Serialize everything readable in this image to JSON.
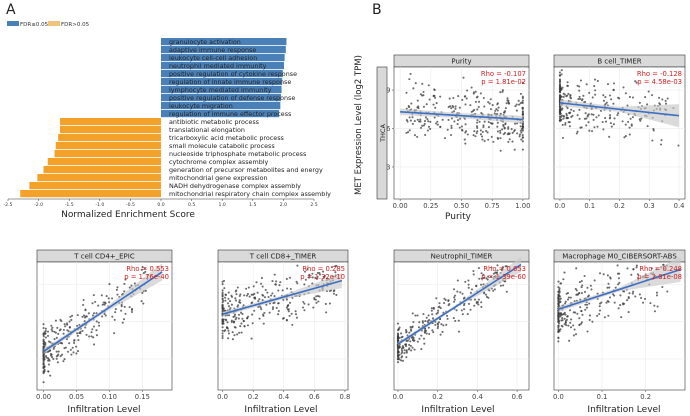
{
  "panel_a": {
    "letter": "A",
    "legend": [
      {
        "label": "FDR≤0.05",
        "color": "#4a80b8"
      },
      {
        "label": "FDR>0.05",
        "color": "#f0c27a"
      }
    ],
    "xlabel": "Normalized Enrichment Score"
  },
  "panel_b": {
    "letter": "B",
    "ylabel": "MET Expression Level (log2 TPM)",
    "row_label": "THCA",
    "purity_xlabel": "Purity",
    "infiltration_xlabel": "Infiltration Level"
  },
  "colors": {
    "positive_bar": "#4a80b8",
    "negative_bar": "#f3a128",
    "point": "#3c3c3c",
    "fit_line": "#3a6fc4",
    "ci_band": "#c8c8c8",
    "stat_text": "#d21f1f",
    "strip_bg": "#d9d9d9"
  },
  "chart_data": [
    {
      "type": "bar",
      "id": "gsea",
      "title": "",
      "xlabel": "Normalized Enrichment Score",
      "xlim": [
        -2.5,
        2.5
      ],
      "xticks": [
        -2.5,
        -2.0,
        -1.5,
        -1.0,
        -0.5,
        0.0,
        0.5,
        1.0,
        1.5,
        2.0,
        2.5
      ],
      "categories": [
        "granulocyte activation",
        "adaptive immune response",
        "leukocyte cell-cell adhesion",
        "neutrophil mediated immunity",
        "positive regulation of cytokine response",
        "regulation of innate immune response",
        "lymphocyte mediated immunity",
        "positive regulation of defense response",
        "leukocyte migration",
        "regulation of immune effector process",
        "antibiotic metabolic process",
        "translational elongation",
        "tricarboxylic acid metabolic process",
        "small molecule catabolic process",
        "nucleoside triphosphate metabolic process",
        "cytochrome complex assembly",
        "generation of precursor metabolites and energy",
        "mitochondrial gene expression",
        "NADH dehydrogenase complex assembly",
        "mitochondrial respiratory chain complex assembly"
      ],
      "values": [
        2.05,
        2.04,
        2.02,
        2.01,
        1.99,
        1.98,
        1.97,
        1.96,
        1.95,
        1.93,
        -1.65,
        -1.65,
        -1.68,
        -1.72,
        -1.74,
        -1.85,
        -1.92,
        -2.02,
        -2.15,
        -2.3
      ]
    },
    {
      "type": "scatter",
      "id": "purity",
      "title": "Purity",
      "xlabel": "Purity",
      "ylabel": "MET Expression Level (log2 TPM)",
      "xlim": [
        -0.05,
        1.05
      ],
      "ylim": [
        0.5,
        10.8
      ],
      "xticks": [
        0.0,
        0.25,
        0.5,
        0.75,
        1.0
      ],
      "xtick_labels": [
        "0.00",
        "0.25",
        "0.50",
        "0.75",
        "1.00"
      ],
      "yticks": [
        3,
        6,
        9
      ],
      "show_yticks": true,
      "rho_text": "Rho = -0.107",
      "p_text": "p = 1.81e-02",
      "fit": {
        "x": [
          0.0,
          1.0
        ],
        "y": [
          7.3,
          6.7
        ]
      },
      "ci_width": [
        0.25,
        0.3
      ],
      "x_dist": "purity",
      "y_center": 7.0,
      "y_spread": 1.7,
      "slope": -0.6,
      "seed": 11,
      "n": 330
    },
    {
      "type": "scatter",
      "id": "bcell",
      "title": "B cell_TIMER",
      "xlabel": "",
      "xlim": [
        -0.02,
        0.42
      ],
      "ylim": [
        0.5,
        10.8
      ],
      "xticks": [
        0.0,
        0.1,
        0.2,
        0.3,
        0.4
      ],
      "xtick_labels": [
        "0.0",
        "0.1",
        "0.2",
        "0.3",
        "0.4"
      ],
      "yticks": [
        3,
        6,
        9
      ],
      "show_yticks": false,
      "rho_text": "Rho = -0.128",
      "p_text": "p = 4.58e-03",
      "fit": {
        "x": [
          0.0,
          0.4
        ],
        "y": [
          8.0,
          7.0
        ]
      },
      "ci_width": [
        0.25,
        0.9
      ],
      "x_dist": "skew",
      "x_max": 0.4,
      "y_center": 7.6,
      "y_spread": 1.6,
      "slope": -2.5,
      "seed": 23,
      "n": 300
    },
    {
      "type": "scatter",
      "id": "cd4",
      "title": "T cell CD4+_EPIC",
      "xlabel": "Infiltration Level",
      "xlim": [
        -0.01,
        0.195
      ],
      "ylim": [
        0.5,
        10.8
      ],
      "xticks": [
        0.0,
        0.05,
        0.1,
        0.15
      ],
      "xtick_labels": [
        "0.00",
        "0.05",
        "0.10",
        "0.15"
      ],
      "yticks": [
        3,
        6,
        9
      ],
      "show_yticks": false,
      "rho_text": "Rho = 0.553",
      "p_text": "p = 1.76e-40",
      "fit": {
        "x": [
          0.0,
          0.18
        ],
        "y": [
          3.6,
          10.0
        ]
      },
      "ci_width": [
        0.2,
        0.7
      ],
      "x_dist": "skew",
      "x_max": 0.16,
      "y_center": 6.0,
      "y_spread": 1.4,
      "slope": 35.0,
      "seed": 37,
      "n": 300
    },
    {
      "type": "scatter",
      "id": "cd8",
      "title": "T cell CD8+_TIMER",
      "xlabel": "Infiltration Level",
      "xlim": [
        -0.03,
        0.82
      ],
      "ylim": [
        0.5,
        10.8
      ],
      "xticks": [
        0.0,
        0.2,
        0.4,
        0.6,
        0.8
      ],
      "xtick_labels": [
        "0.0",
        "0.2",
        "0.4",
        "0.6",
        "0.8"
      ],
      "yticks": [
        3,
        6,
        9
      ],
      "show_yticks": false,
      "rho_text": "Rho = 0.285",
      "p_text": "p = 1.32e-10",
      "fit": {
        "x": [
          0.0,
          0.78
        ],
        "y": [
          6.6,
          9.3
        ]
      },
      "ci_width": [
        0.2,
        0.6
      ],
      "x_dist": "uniform",
      "x_max": 0.75,
      "y_center": 7.4,
      "y_spread": 1.6,
      "slope": 3.4,
      "seed": 41,
      "n": 320
    },
    {
      "type": "scatter",
      "id": "neutrophil",
      "title": "Neutrophil_TIMER",
      "xlabel": "Infiltration Level",
      "xlim": [
        -0.02,
        0.66
      ],
      "ylim": [
        0.5,
        10.8
      ],
      "xticks": [
        0.0,
        0.2,
        0.4,
        0.6
      ],
      "xtick_labels": [
        "0.0",
        "0.2",
        "0.4",
        "0.6"
      ],
      "yticks": [
        3,
        6,
        9
      ],
      "show_yticks": false,
      "rho_text": "Rho = 0.653",
      "p_text": "p = 1.39e-60",
      "fit": {
        "x": [
          0.0,
          0.62
        ],
        "y": [
          4.2,
          10.6
        ]
      },
      "ci_width": [
        0.15,
        0.6
      ],
      "x_dist": "uniform",
      "x_max": 0.55,
      "y_center": 6.6,
      "y_spread": 1.2,
      "slope": 10.0,
      "seed": 53,
      "n": 320
    },
    {
      "type": "scatter",
      "id": "macrophage",
      "title": "Macrophage M0_CIBERSORT-ABS",
      "xlabel": "Infiltration Level",
      "xlim": [
        -0.01,
        0.29
      ],
      "ylim": [
        0.5,
        10.8
      ],
      "xticks": [
        0.0,
        0.1,
        0.2
      ],
      "xtick_labels": [
        "0.0",
        "0.1",
        "0.2"
      ],
      "yticks": [
        3,
        6,
        9
      ],
      "show_yticks": false,
      "rho_text": "Rho = 0.248",
      "p_text": "p = 2.81e-08",
      "fit": {
        "x": [
          0.0,
          0.28
        ],
        "y": [
          7.0,
          10.2
        ]
      },
      "ci_width": [
        0.2,
        1.0
      ],
      "x_dist": "skew",
      "x_max": 0.25,
      "y_center": 7.4,
      "y_spread": 1.6,
      "slope": 11.0,
      "seed": 67,
      "n": 280
    }
  ]
}
